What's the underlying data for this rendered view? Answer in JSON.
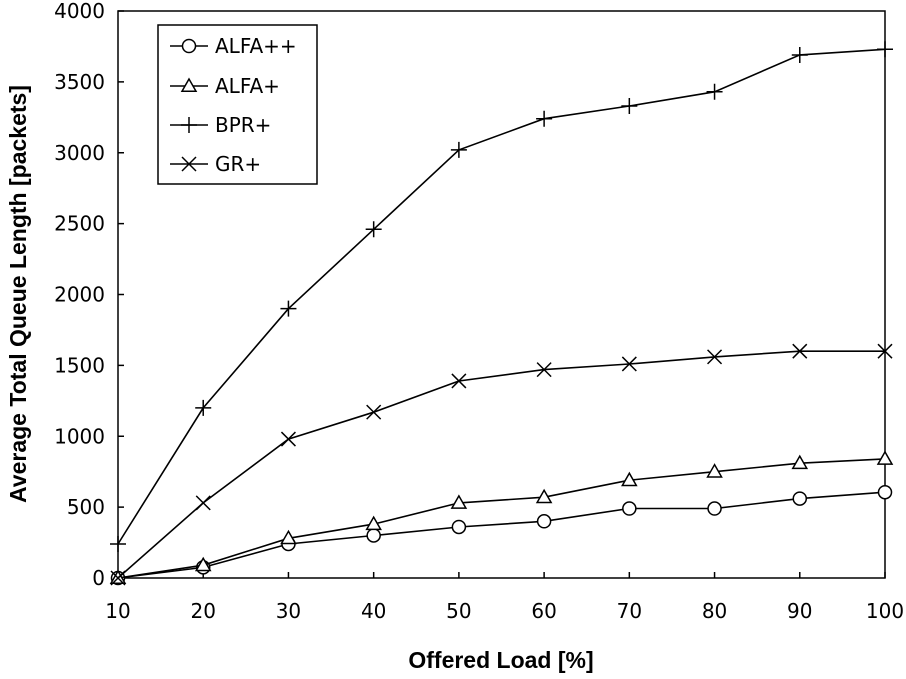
{
  "chart_data": {
    "type": "line",
    "title": "",
    "xlabel": "Offered Load [%]",
    "ylabel": "Average Total Queue Length [packets]",
    "x": [
      10,
      20,
      30,
      40,
      50,
      60,
      70,
      80,
      90,
      100
    ],
    "xlim": [
      10,
      100
    ],
    "ylim": [
      0,
      4000
    ],
    "xticks": [
      "10",
      "20",
      "30",
      "40",
      "50",
      "60",
      "70",
      "80",
      "90",
      "100"
    ],
    "yticks": [
      "0",
      "500",
      "1000",
      "1500",
      "2000",
      "2500",
      "3000",
      "3500",
      "4000"
    ],
    "grid": false,
    "legend_position": "top-left",
    "series": [
      {
        "name": "ALFA++",
        "marker": "circle",
        "values": [
          0,
          75,
          240,
          300,
          360,
          400,
          490,
          490,
          560,
          605
        ]
      },
      {
        "name": "ALFA+",
        "marker": "triangle",
        "values": [
          0,
          90,
          280,
          380,
          530,
          570,
          690,
          750,
          810,
          840
        ]
      },
      {
        "name": "BPR+",
        "marker": "plus",
        "values": [
          240,
          1200,
          1900,
          2460,
          3020,
          3240,
          3330,
          3430,
          3690,
          3730
        ]
      },
      {
        "name": "GR+",
        "marker": "cross",
        "values": [
          0,
          530,
          980,
          1170,
          1390,
          1470,
          1510,
          1560,
          1600,
          1600
        ]
      }
    ]
  }
}
